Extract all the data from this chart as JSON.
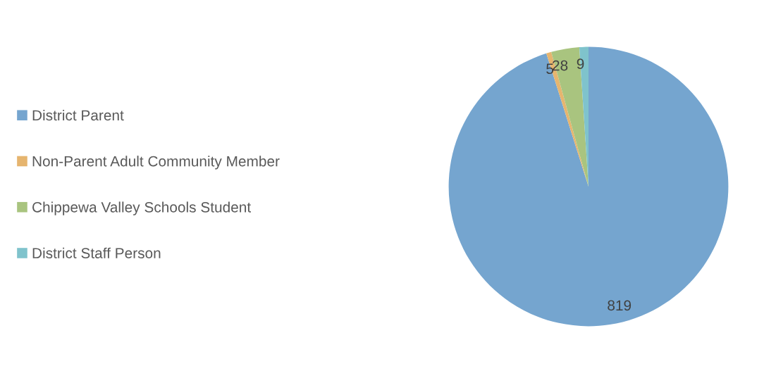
{
  "chart_data": {
    "type": "pie",
    "categories": [
      "District Parent",
      "Non-Parent Adult Community Member",
      "Chippewa Valley Schools Student",
      "District Staff Person"
    ],
    "values": [
      819,
      5,
      28,
      9
    ],
    "colors": [
      "#75a5cf",
      "#e6b56f",
      "#a9c47f",
      "#7fc3cc"
    ],
    "data_labels": true,
    "legend": "left"
  }
}
